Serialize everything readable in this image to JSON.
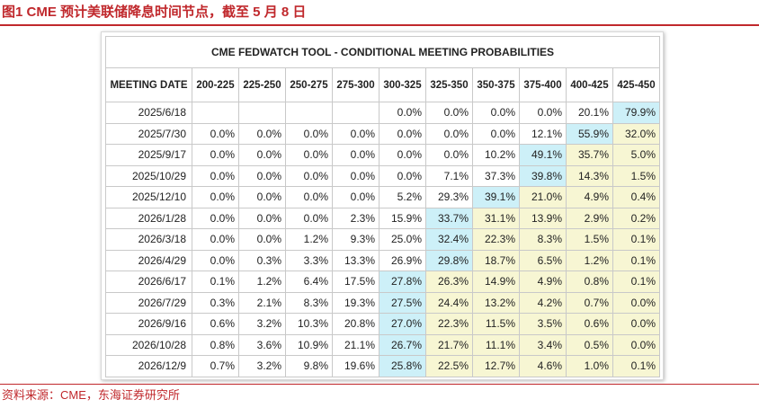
{
  "figure": {
    "title": "图1  CME 预计美联储降息时间节点，截至 5 月 8 日",
    "source": "资料来源：CME，东海证券研究所"
  },
  "colors": {
    "brand_red": "#c0282c",
    "highlight_blue": "#cdf0f8",
    "highlight_yellow": "#f7f6d3"
  },
  "table": {
    "title": "CME FEDWATCH TOOL - CONDITIONAL MEETING PROBABILITIES",
    "headers": [
      "MEETING DATE",
      "200-225",
      "225-250",
      "250-275",
      "275-300",
      "300-325",
      "325-350",
      "350-375",
      "375-400",
      "400-425",
      "425-450"
    ],
    "rows": [
      {
        "date": "2025/6/18",
        "cells": [
          "",
          "",
          "",
          "",
          "0.0%",
          "0.0%",
          "0.0%",
          "0.0%",
          "20.1%",
          "79.9%"
        ]
      },
      {
        "date": "2025/7/30",
        "cells": [
          "0.0%",
          "0.0%",
          "0.0%",
          "0.0%",
          "0.0%",
          "0.0%",
          "0.0%",
          "12.1%",
          "55.9%",
          "32.0%"
        ]
      },
      {
        "date": "2025/9/17",
        "cells": [
          "0.0%",
          "0.0%",
          "0.0%",
          "0.0%",
          "0.0%",
          "0.0%",
          "10.2%",
          "49.1%",
          "35.7%",
          "5.0%"
        ]
      },
      {
        "date": "2025/10/29",
        "cells": [
          "0.0%",
          "0.0%",
          "0.0%",
          "0.0%",
          "0.0%",
          "7.1%",
          "37.3%",
          "39.8%",
          "14.3%",
          "1.5%"
        ]
      },
      {
        "date": "2025/12/10",
        "cells": [
          "0.0%",
          "0.0%",
          "0.0%",
          "0.0%",
          "5.2%",
          "29.3%",
          "39.1%",
          "21.0%",
          "4.9%",
          "0.4%"
        ]
      },
      {
        "date": "2026/1/28",
        "cells": [
          "0.0%",
          "0.0%",
          "0.0%",
          "2.3%",
          "15.9%",
          "33.7%",
          "31.1%",
          "13.9%",
          "2.9%",
          "0.2%"
        ]
      },
      {
        "date": "2026/3/18",
        "cells": [
          "0.0%",
          "0.0%",
          "1.2%",
          "9.3%",
          "25.0%",
          "32.4%",
          "22.3%",
          "8.3%",
          "1.5%",
          "0.1%"
        ]
      },
      {
        "date": "2026/4/29",
        "cells": [
          "0.0%",
          "0.3%",
          "3.3%",
          "13.3%",
          "26.9%",
          "29.8%",
          "18.7%",
          "6.5%",
          "1.2%",
          "0.1%"
        ]
      },
      {
        "date": "2026/6/17",
        "cells": [
          "0.1%",
          "1.2%",
          "6.4%",
          "17.5%",
          "27.8%",
          "26.3%",
          "14.9%",
          "4.9%",
          "0.8%",
          "0.1%"
        ]
      },
      {
        "date": "2026/7/29",
        "cells": [
          "0.3%",
          "2.1%",
          "8.3%",
          "19.3%",
          "27.5%",
          "24.4%",
          "13.2%",
          "4.2%",
          "0.7%",
          "0.0%"
        ]
      },
      {
        "date": "2026/9/16",
        "cells": [
          "0.6%",
          "3.2%",
          "10.3%",
          "20.8%",
          "27.0%",
          "22.3%",
          "11.5%",
          "3.5%",
          "0.6%",
          "0.0%"
        ]
      },
      {
        "date": "2026/10/28",
        "cells": [
          "0.8%",
          "3.6%",
          "10.9%",
          "21.1%",
          "26.7%",
          "21.7%",
          "11.1%",
          "3.4%",
          "0.5%",
          "0.0%"
        ]
      },
      {
        "date": "2026/12/9",
        "cells": [
          "0.7%",
          "3.2%",
          "9.8%",
          "19.6%",
          "25.8%",
          "22.5%",
          "12.7%",
          "4.6%",
          "1.0%",
          "0.1%"
        ]
      }
    ]
  }
}
